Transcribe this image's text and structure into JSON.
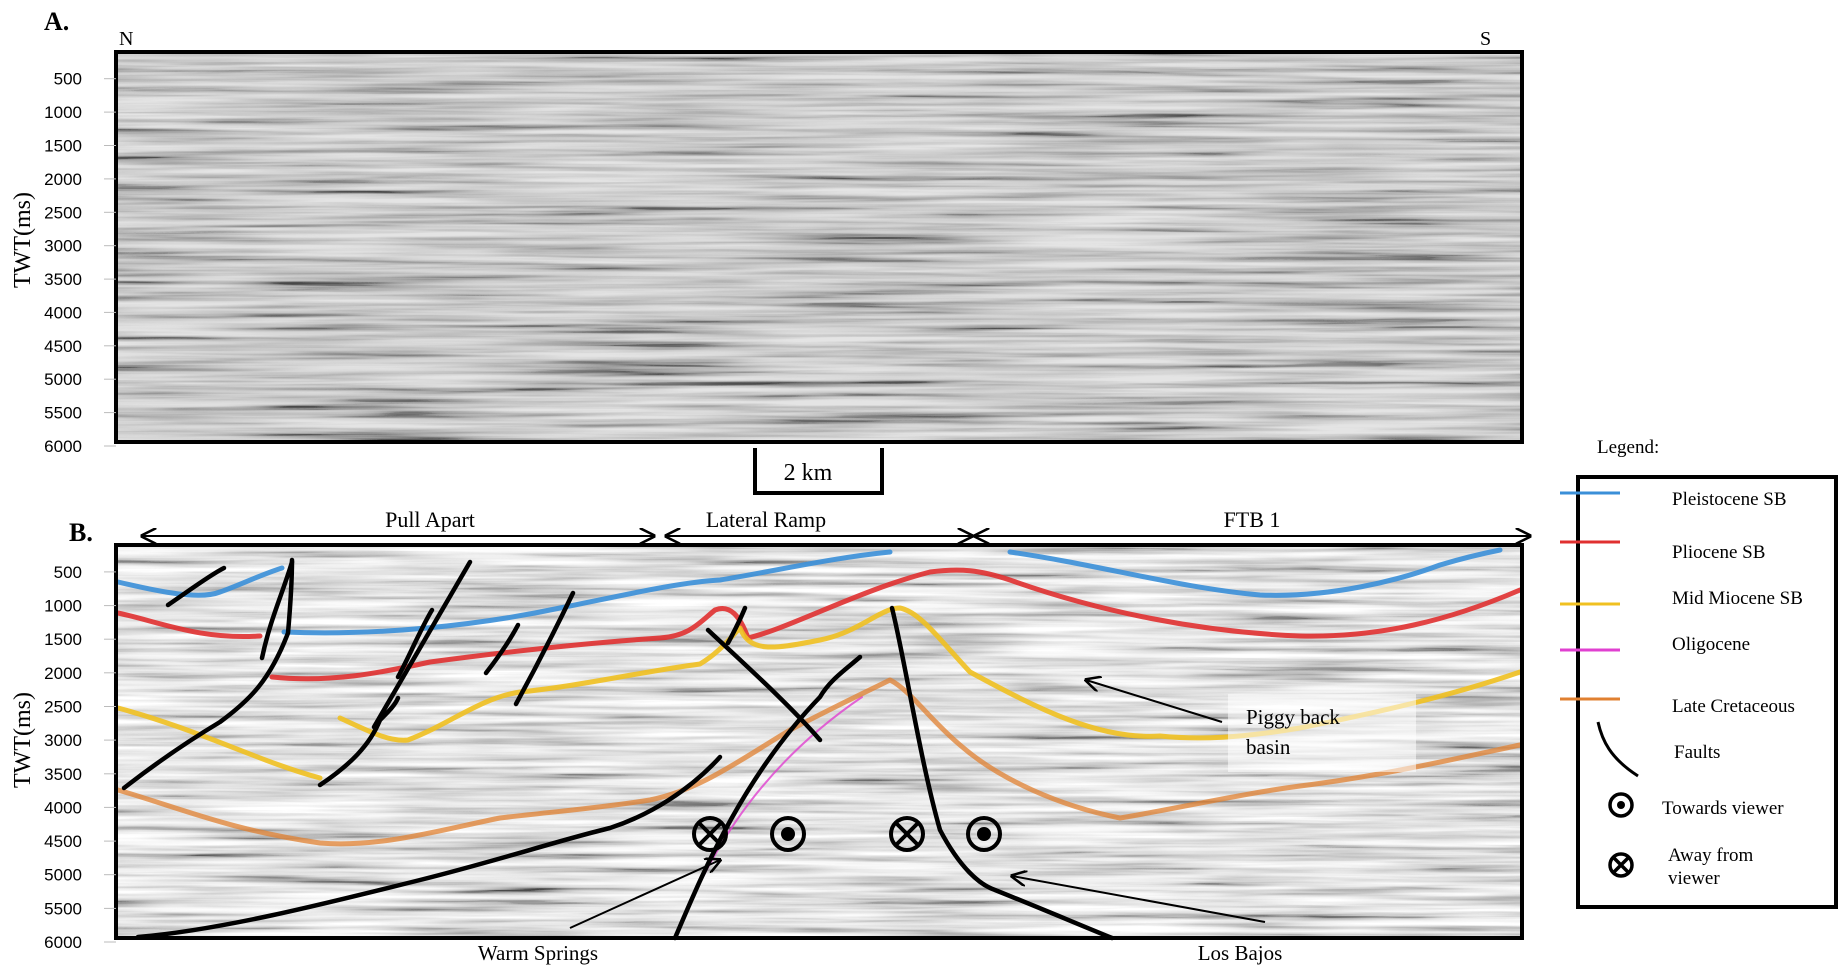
{
  "panel_a": {
    "label": "A.",
    "left_end": "N",
    "right_end": "S",
    "ylabel": "TWT(ms)",
    "ticks": [
      "500",
      "1000",
      "1500",
      "2000",
      "2500",
      "3000",
      "3500",
      "4000",
      "4500",
      "5000",
      "5500",
      "6000"
    ]
  },
  "scale_bar": {
    "label": "2 km"
  },
  "panel_b": {
    "label": "B.",
    "ylabel": "TWT(ms)",
    "ticks": [
      "500",
      "1000",
      "1500",
      "2000",
      "2500",
      "3000",
      "3500",
      "4000",
      "4500",
      "5000",
      "5500",
      "6000"
    ],
    "zones": [
      {
        "label": "Pull Apart"
      },
      {
        "label": "Lateral Ramp"
      },
      {
        "label": "FTB 1"
      }
    ],
    "annotations": {
      "piggy_back": "Piggy back\nbasin",
      "piggy_back_line1": "Piggy back",
      "piggy_back_line2": "basin",
      "warm_springs": "Warm Springs",
      "los_bajos": "Los Bajos"
    }
  },
  "legend": {
    "title": "Legend:",
    "items": [
      {
        "label": "Pleistocene SB",
        "color": "#3a8fd8",
        "symbol": "line"
      },
      {
        "label": "Pliocene SB",
        "color": "#e03030",
        "symbol": "line"
      },
      {
        "label": "Mid Miocene SB",
        "color": "#f0c020",
        "symbol": "line"
      },
      {
        "label": "Oligocene",
        "color": "#e040d0",
        "symbol": "line"
      },
      {
        "label": "Late Cretaceous",
        "color": "#e08030",
        "symbol": "line"
      },
      {
        "label": "Faults",
        "color": "#000000",
        "symbol": "fault"
      },
      {
        "label": "Towards viewer",
        "color": "#000000",
        "symbol": "dot-circle"
      },
      {
        "label": "Away from viewer",
        "line1": "Away from",
        "line2": "viewer",
        "color": "#000000",
        "symbol": "cross-circle"
      }
    ]
  }
}
